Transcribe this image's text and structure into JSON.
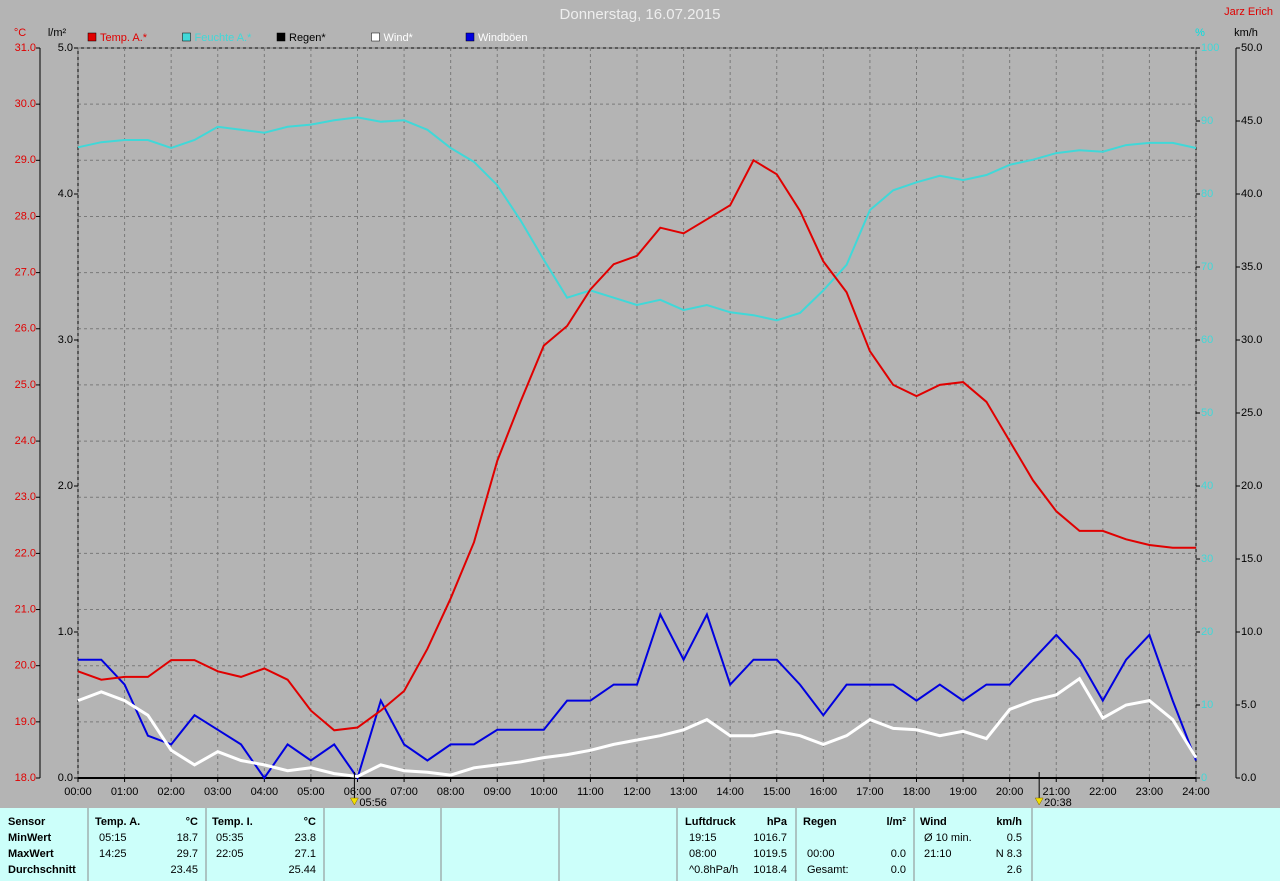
{
  "chart_data": {
    "type": "line",
    "title": "Donnerstag, 16.07.2015",
    "author": "Jarz Erich",
    "ylabel": "°C",
    "y2label": "km/h",
    "y3label": "l/m²",
    "y4label": "%",
    "grid": true,
    "x": [
      0,
      0.5,
      1,
      1.5,
      2,
      2.5,
      3,
      3.5,
      4,
      4.5,
      5,
      5.5,
      6,
      6.5,
      7,
      7.5,
      8,
      8.5,
      9,
      9.5,
      10,
      10.5,
      11,
      11.5,
      12,
      12.5,
      13,
      13.5,
      14,
      14.5,
      15,
      15.5,
      16,
      16.5,
      17,
      17.5,
      18,
      18.5,
      19,
      19.5,
      20,
      20.5,
      21,
      21.5,
      22,
      22.5,
      23,
      23.5,
      24
    ],
    "xlim": [
      0,
      24
    ],
    "xticks": [
      {
        "value": 0,
        "label": "00:00"
      },
      {
        "value": 1,
        "label": "01:00"
      },
      {
        "value": 2,
        "label": "02:00"
      },
      {
        "value": 3,
        "label": "03:00"
      },
      {
        "value": 4,
        "label": "04:00"
      },
      {
        "value": 5,
        "label": "05:00"
      },
      {
        "value": 6,
        "label": "06:00"
      },
      {
        "value": 7,
        "label": "07:00"
      },
      {
        "value": 8,
        "label": "08:00"
      },
      {
        "value": 9,
        "label": "09:00"
      },
      {
        "value": 10,
        "label": "10:00"
      },
      {
        "value": 11,
        "label": "11:00"
      },
      {
        "value": 12,
        "label": "12:00"
      },
      {
        "value": 13,
        "label": "13:00"
      },
      {
        "value": 14,
        "label": "14:00"
      },
      {
        "value": 15,
        "label": "15:00"
      },
      {
        "value": 16,
        "label": "16:00"
      },
      {
        "value": 17,
        "label": "17:00"
      },
      {
        "value": 18,
        "label": "18:00"
      },
      {
        "value": 19,
        "label": "19:00"
      },
      {
        "value": 20,
        "label": "20:00"
      },
      {
        "value": 21,
        "label": "21:00"
      },
      {
        "value": 22,
        "label": "22:00"
      },
      {
        "value": 23,
        "label": "23:00"
      },
      {
        "value": 24,
        "label": "24:00"
      }
    ],
    "ylim": [
      18,
      31
    ],
    "yticks": [
      {
        "value": 18,
        "label": "18.0"
      },
      {
        "value": 19,
        "label": "19.0"
      },
      {
        "value": 20,
        "label": "20.0"
      },
      {
        "value": 21,
        "label": "21.0"
      },
      {
        "value": 22,
        "label": "22.0"
      },
      {
        "value": 23,
        "label": "23.0"
      },
      {
        "value": 24,
        "label": "24.0"
      },
      {
        "value": 25,
        "label": "25.0"
      },
      {
        "value": 26,
        "label": "26.0"
      },
      {
        "value": 27,
        "label": "27.0"
      },
      {
        "value": 28,
        "label": "28.0"
      },
      {
        "value": 29,
        "label": "29.0"
      },
      {
        "value": 30,
        "label": "30.0"
      },
      {
        "value": 31,
        "label": "31.0"
      }
    ],
    "y2lim": [
      0,
      50
    ],
    "y2ticks": [
      {
        "value": 0,
        "label": "0.0"
      },
      {
        "value": 5,
        "label": "5.0"
      },
      {
        "value": 10,
        "label": "10.0"
      },
      {
        "value": 15,
        "label": "15.0"
      },
      {
        "value": 20,
        "label": "20.0"
      },
      {
        "value": 25,
        "label": "25.0"
      },
      {
        "value": 30,
        "label": "30.0"
      },
      {
        "value": 35,
        "label": "35.0"
      },
      {
        "value": 40,
        "label": "40.0"
      },
      {
        "value": 45,
        "label": "45.0"
      },
      {
        "value": 50,
        "label": "50.0"
      }
    ],
    "y3lim": [
      0,
      5
    ],
    "y3ticks": [
      {
        "value": 0,
        "label": "0.0"
      },
      {
        "value": 1,
        "label": "1.0"
      },
      {
        "value": 2,
        "label": "2.0"
      },
      {
        "value": 3,
        "label": "3.0"
      },
      {
        "value": 4,
        "label": "4.0"
      },
      {
        "value": 5,
        "label": "5.0"
      }
    ],
    "y4lim": [
      0,
      100
    ],
    "y4ticks": [
      0,
      10,
      20,
      30,
      40,
      50,
      60,
      70,
      80,
      90,
      100
    ],
    "series": [
      {
        "name": "Temp. A.*",
        "color": "#e00000",
        "axis": "y",
        "values": [
          19.9,
          19.75,
          19.8,
          19.8,
          20.1,
          20.1,
          19.9,
          19.8,
          19.95,
          19.75,
          19.2,
          18.85,
          18.9,
          19.2,
          19.55,
          20.3,
          21.2,
          22.2,
          23.65,
          24.7,
          25.7,
          26.05,
          26.7,
          27.15,
          27.3,
          27.8,
          27.7,
          27.95,
          28.2,
          29.0,
          28.75,
          28.1,
          27.2,
          26.65,
          25.6,
          25.0,
          24.8,
          25.0,
          25.05,
          24.7,
          24.0,
          23.3,
          22.75,
          22.4,
          22.4,
          22.25,
          22.15,
          22.1,
          22.1
        ]
      },
      {
        "name": "Feuchte A.*",
        "color": "#40d8d8",
        "axis": "y4",
        "values": [
          86.4,
          87.1,
          87.4,
          87.4,
          86.3,
          87.4,
          89.2,
          88.8,
          88.4,
          89.2,
          89.5,
          90.1,
          90.5,
          89.9,
          90.1,
          88.8,
          86.3,
          84.4,
          81.2,
          76.4,
          71.0,
          65.8,
          66.8,
          65.8,
          64.8,
          65.5,
          64.1,
          64.8,
          63.8,
          63.4,
          62.7,
          63.7,
          66.8,
          70.3,
          77.8,
          80.5,
          81.6,
          82.5,
          81.9,
          82.6,
          84.0,
          84.7,
          85.6,
          86.0,
          85.8,
          86.7,
          87.0,
          87.0,
          86.3
        ]
      },
      {
        "name": "Regen*",
        "color": "#000000",
        "axis": "y3",
        "values": [
          0,
          0,
          0,
          0,
          0,
          0,
          0,
          0,
          0,
          0,
          0,
          0,
          0,
          0,
          0,
          0,
          0,
          0,
          0,
          0,
          0,
          0,
          0,
          0,
          0,
          0,
          0,
          0,
          0,
          0,
          0,
          0,
          0,
          0,
          0,
          0,
          0,
          0,
          0,
          0,
          0,
          0,
          0,
          0,
          0,
          0,
          0,
          0,
          0
        ]
      },
      {
        "name": "Wind*",
        "color": "#ffffff",
        "axis": "y2",
        "values": [
          5.3,
          5.9,
          5.3,
          4.3,
          1.9,
          0.9,
          1.8,
          1.2,
          0.9,
          0.5,
          0.7,
          0.3,
          0.1,
          0.9,
          0.5,
          0.4,
          0.2,
          0.7,
          0.9,
          1.1,
          1.4,
          1.6,
          1.9,
          2.3,
          2.6,
          2.9,
          3.3,
          4.0,
          2.9,
          2.9,
          3.2,
          2.9,
          2.3,
          2.9,
          4.0,
          3.4,
          3.3,
          2.9,
          3.2,
          2.7,
          4.7,
          5.3,
          5.7,
          6.8,
          4.1,
          5.0,
          5.3,
          4.0,
          1.4
        ]
      },
      {
        "name": "Windböen",
        "color": "#0000e0",
        "axis": "y2",
        "values": [
          8.1,
          8.1,
          6.4,
          2.9,
          2.3,
          4.3,
          3.3,
          2.3,
          0.0,
          2.3,
          1.2,
          2.3,
          0.0,
          5.3,
          2.3,
          1.2,
          2.3,
          2.3,
          3.3,
          3.3,
          3.3,
          5.3,
          5.3,
          6.4,
          6.4,
          11.2,
          8.1,
          11.2,
          6.4,
          8.1,
          8.1,
          6.4,
          4.3,
          6.4,
          6.4,
          6.4,
          5.3,
          6.4,
          5.3,
          6.4,
          6.4,
          8.1,
          9.8,
          8.1,
          5.3,
          8.1,
          9.8,
          5.3,
          1.2
        ]
      }
    ],
    "annotations": [
      {
        "x": 5.9333,
        "label": "05:56"
      },
      {
        "x": 20.6333,
        "label": "20:38"
      }
    ]
  },
  "table": {
    "row_labels": [
      "Sensor",
      "MinWert",
      "MaxWert",
      "Durchschnitt"
    ],
    "groups": [
      {
        "name": "Temp. A.",
        "unit": "°C",
        "rows": [
          [
            "05:15",
            "18.7"
          ],
          [
            "14:25",
            "29.7"
          ],
          [
            null,
            "23.45"
          ]
        ]
      },
      {
        "name": "Temp. I.",
        "unit": "°C",
        "rows": [
          [
            "05:35",
            "23.8"
          ],
          [
            "22:05",
            "27.1"
          ],
          [
            null,
            "25.44"
          ]
        ]
      },
      {
        "name": "Luftdruck",
        "unit": "hPa",
        "rows": [
          [
            "19:15",
            "1016.7"
          ],
          [
            "08:00",
            "1019.5"
          ],
          [
            "^0.8hPa/h",
            "1018.4"
          ]
        ]
      },
      {
        "name": "Regen",
        "unit": "l/m²",
        "rows": [
          [
            null,
            null
          ],
          [
            "00:00",
            "0.0"
          ],
          [
            "Gesamt:",
            "0.0"
          ]
        ]
      },
      {
        "name": "Wind",
        "unit": "km/h",
        "rows": [
          [
            "Ø 10 min.",
            "0.5"
          ],
          [
            "21:10",
            "N 8.3"
          ],
          [
            null,
            "2.6"
          ]
        ]
      }
    ]
  }
}
